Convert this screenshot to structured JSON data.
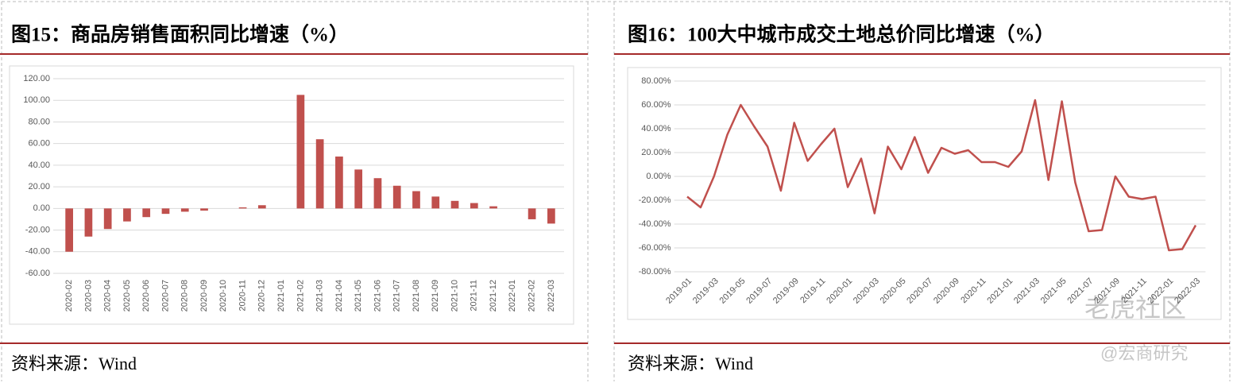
{
  "chart_data": [
    {
      "type": "bar",
      "title": "图15：商品房销售面积同比增速（%）",
      "source": "资料来源：Wind",
      "color": "#c0504d",
      "grid": true,
      "categories": [
        "2020-02",
        "2020-03",
        "2020-04",
        "2020-05",
        "2020-06",
        "2020-07",
        "2020-08",
        "2020-09",
        "2020-10",
        "2020-11",
        "2020-12",
        "2021-01",
        "2021-02",
        "2021-03",
        "2021-04",
        "2021-05",
        "2021-06",
        "2021-07",
        "2021-08",
        "2021-09",
        "2021-10",
        "2021-11",
        "2021-12",
        "2022-01",
        "2022-02",
        "2022-03"
      ],
      "values": [
        -40,
        -26,
        -19,
        -12,
        -8,
        -5,
        -3,
        -2,
        0,
        1,
        3,
        null,
        105,
        64,
        48,
        36,
        28,
        21,
        16,
        11,
        7,
        5,
        2,
        null,
        -10,
        -14
      ],
      "ylim": [
        -60,
        120
      ],
      "yticks": [
        {
          "value": -60,
          "label": "-60.00"
        },
        {
          "value": -40,
          "label": "-40.00"
        },
        {
          "value": -20,
          "label": "-20.00"
        },
        {
          "value": 0,
          "label": "0.00"
        },
        {
          "value": 20,
          "label": "20.00"
        },
        {
          "value": 40,
          "label": "40.00"
        },
        {
          "value": 60,
          "label": "60.00"
        },
        {
          "value": 80,
          "label": "80.00"
        },
        {
          "value": 100,
          "label": "100.00"
        },
        {
          "value": 120,
          "label": "120.00"
        }
      ]
    },
    {
      "type": "line",
      "title": "图16：100大中城市成交土地总价同比增速（%）",
      "source": "资料来源：Wind",
      "color": "#c0504d",
      "grid": true,
      "categories": [
        "2019-01",
        null,
        "2019-03",
        null,
        "2019-05",
        null,
        "2019-07",
        null,
        "2019-09",
        null,
        "2019-11",
        null,
        "2020-01",
        null,
        "2020-03",
        null,
        "2020-05",
        null,
        "2020-07",
        null,
        "2020-09",
        null,
        "2020-11",
        null,
        "2021-01",
        null,
        "2021-03",
        null,
        "2021-05",
        null,
        "2021-07",
        null,
        "2021-09",
        null,
        "2021-11",
        null,
        "2022-01",
        null,
        "2022-03"
      ],
      "values": [
        -17,
        -26,
        0,
        35,
        60,
        42,
        25,
        -12,
        45,
        13,
        27,
        40,
        -9,
        15,
        -31,
        25,
        6,
        33,
        3,
        24,
        19,
        22,
        12,
        12,
        8,
        21,
        64,
        -3,
        63,
        -5,
        -46,
        -45,
        0,
        -17,
        -19,
        -17,
        -62,
        -61,
        -41
      ],
      "ylim": [
        -80,
        80
      ],
      "yticks": [
        {
          "value": -80,
          "label": "-80.00%"
        },
        {
          "value": -60,
          "label": "-60.00%"
        },
        {
          "value": -40,
          "label": "-40.00%"
        },
        {
          "value": -20,
          "label": "-20.00%"
        },
        {
          "value": 0,
          "label": "0.00%"
        },
        {
          "value": 20,
          "label": "20.00%"
        },
        {
          "value": 40,
          "label": "40.00%"
        },
        {
          "value": 60,
          "label": "60.00%"
        },
        {
          "value": 80,
          "label": "80.00%"
        }
      ]
    }
  ],
  "watermark": [
    "老虎社区",
    "@宏商研究"
  ]
}
